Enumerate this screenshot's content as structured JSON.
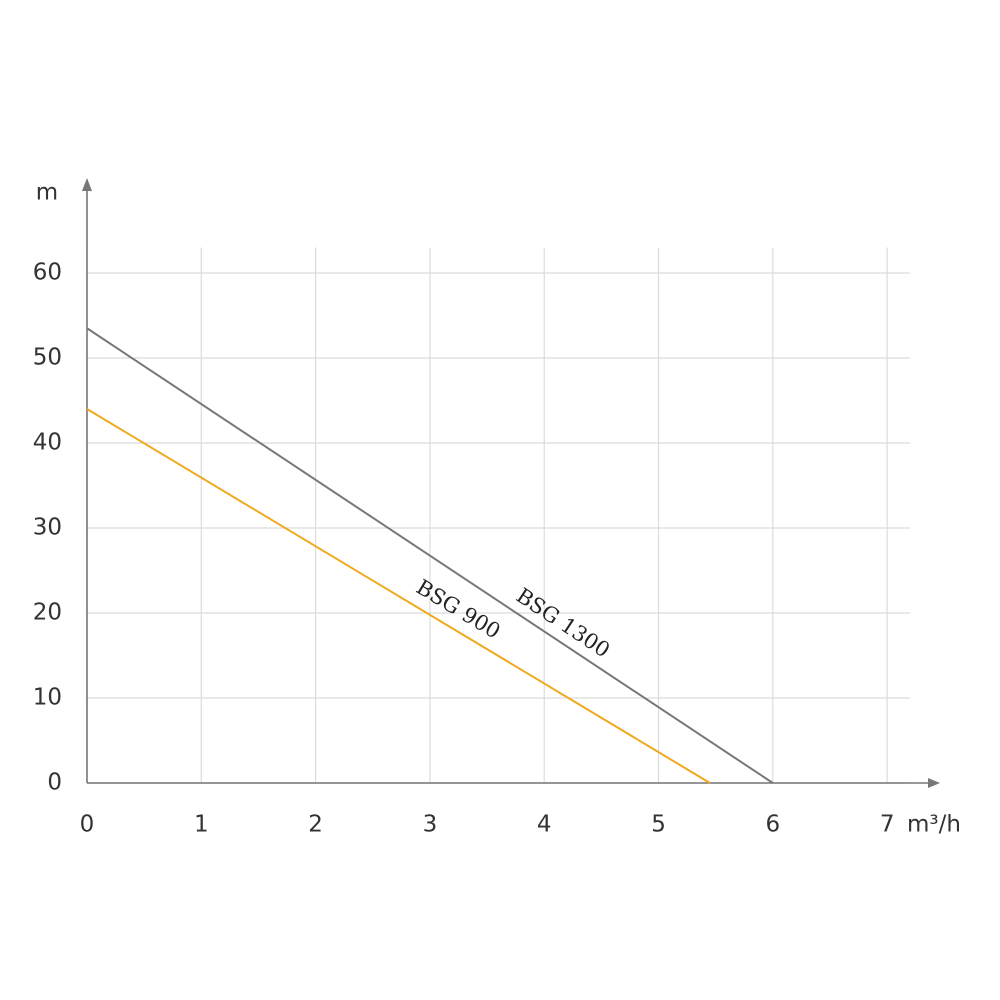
{
  "chart_data": {
    "type": "line",
    "y_label": "m",
    "x_label": "m³/h",
    "xlim": [
      0,
      7.2
    ],
    "ylim": [
      0,
      63
    ],
    "xticks": [
      0,
      1,
      2,
      3,
      4,
      5,
      6,
      7
    ],
    "yticks": [
      0,
      10,
      20,
      30,
      40,
      50,
      60
    ],
    "grid": true,
    "series": [
      {
        "name": "BSG 1300",
        "color": "#777777",
        "x": [
          0,
          6
        ],
        "values": [
          53.5,
          0
        ]
      },
      {
        "name": "BSG 900",
        "color": "#f0a81c",
        "x": [
          0,
          5.45
        ],
        "values": [
          44,
          0
        ]
      }
    ]
  }
}
